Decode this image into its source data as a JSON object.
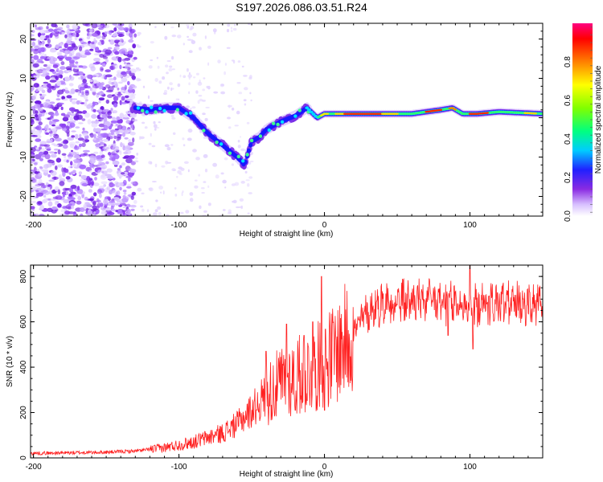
{
  "title": "S197.2026.086.03.51.R24",
  "chart_data": [
    {
      "type": "heatmap",
      "xlabel": "Height of straight line (km)",
      "ylabel": "Frequency (Hz)",
      "xlim": [
        -202,
        150
      ],
      "ylim": [
        -25,
        24
      ],
      "x_ticks": [
        -200,
        -100,
        0,
        100
      ],
      "x_tick_labels": [
        "-200",
        "-100",
        "0",
        "100"
      ],
      "y_ticks": [
        -20,
        -10,
        0,
        10,
        20
      ],
      "y_tick_labels": [
        "-20",
        "-10",
        "0",
        "10",
        "20"
      ],
      "ridge": {
        "x": [
          -130,
          -120,
          -110,
          -100,
          -90,
          -80,
          -70,
          -60,
          -55,
          -50,
          -45,
          -40,
          -30,
          -20,
          -12,
          -5,
          0,
          20,
          40,
          60,
          80,
          88,
          95,
          105,
          120,
          150
        ],
        "y": [
          2.5,
          2,
          2.5,
          2.5,
          0,
          -4,
          -7,
          -10,
          -12,
          -6,
          -5,
          -3,
          -1,
          0.5,
          2.5,
          0,
          1,
          1,
          1,
          1,
          2,
          2.5,
          1,
          1,
          1.5,
          1
        ]
      },
      "colorbar": {
        "label": "Normalized spectral amplitude",
        "range": [
          0,
          1
        ],
        "ticks": [
          0,
          0.2,
          0.4,
          0.6,
          0.8
        ],
        "tick_labels": [
          "0.0",
          "0.2",
          "0.4",
          "0.6",
          "0.8"
        ]
      }
    },
    {
      "type": "line",
      "xlabel": "Height of straight line (km)",
      "ylabel": "SNR (10 * v/v)",
      "xlim": [
        -202,
        150
      ],
      "ylim": [
        0,
        850
      ],
      "x_ticks": [
        -200,
        -100,
        0,
        100
      ],
      "x_tick_labels": [
        "-200",
        "-100",
        "0",
        "100"
      ],
      "y_ticks": [
        0,
        200,
        400,
        600,
        800
      ],
      "y_tick_labels": [
        "0",
        "200",
        "400",
        "600",
        "800"
      ],
      "series": [
        {
          "name": "SNR",
          "color": "#ff2020",
          "envelope": {
            "x": [
              -202,
              -150,
              -130,
              -110,
              -90,
              -70,
              -60,
              -50,
              -40,
              -30,
              -20,
              -10,
              -5,
              0,
              5,
              10,
              20,
              30,
              40,
              60,
              80,
              100,
              120,
              150
            ],
            "y": [
              20,
              25,
              30,
              45,
              70,
              110,
              150,
              210,
              280,
              330,
              360,
              380,
              400,
              420,
              450,
              480,
              560,
              620,
              660,
              670,
              660,
              650,
              660,
              650
            ]
          },
          "spikes": [
            {
              "x": -40,
              "y": 470
            },
            {
              "x": -26,
              "y": 590
            },
            {
              "x": -20,
              "y": 210
            },
            {
              "x": -14,
              "y": 540
            },
            {
              "x": -8,
              "y": 600
            },
            {
              "x": -2,
              "y": 800
            },
            {
              "x": 0,
              "y": 210
            },
            {
              "x": 85,
              "y": 540
            },
            {
              "x": 100,
              "y": 860
            },
            {
              "x": 102,
              "y": 480
            }
          ]
        }
      ]
    }
  ]
}
